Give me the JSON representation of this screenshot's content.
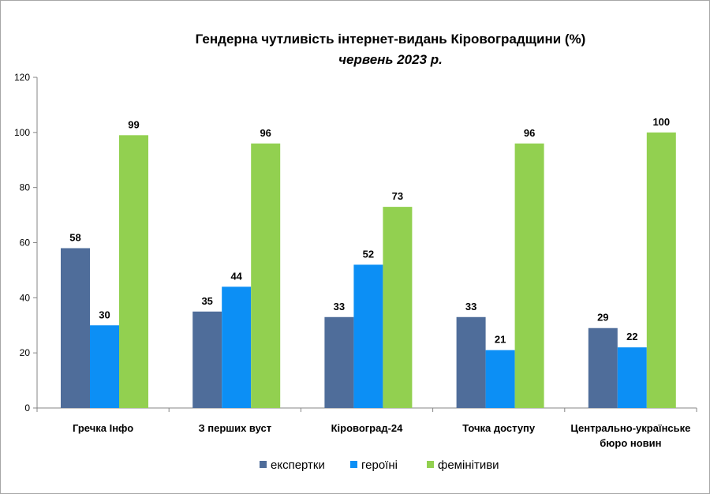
{
  "chart_data": {
    "type": "bar",
    "title": "Гендерна чутливість  інтернет-видань  Кіровоградщини  (%)",
    "subtitle": "червень 2023 р.",
    "categories": [
      [
        "Гречка Інфо"
      ],
      [
        "З перших вуст"
      ],
      [
        "Кіровоград-24"
      ],
      [
        "Точка доступу"
      ],
      [
        "Центрально-українське",
        "бюро новин"
      ]
    ],
    "series": [
      {
        "name": "експертки",
        "color": "#4f6d9a",
        "values": [
          58,
          35,
          33,
          33,
          29
        ]
      },
      {
        "name": "героїні",
        "color": "#0c8ff5",
        "values": [
          30,
          44,
          52,
          21,
          22
        ]
      },
      {
        "name": "фемінітиви",
        "color": "#92d050",
        "values": [
          99,
          96,
          73,
          96,
          100
        ]
      }
    ],
    "ylim": [
      0,
      120
    ],
    "yticks": [
      0,
      20,
      40,
      60,
      80,
      100,
      120
    ],
    "grid": false,
    "legend_position": "bottom",
    "data_labels": true
  }
}
